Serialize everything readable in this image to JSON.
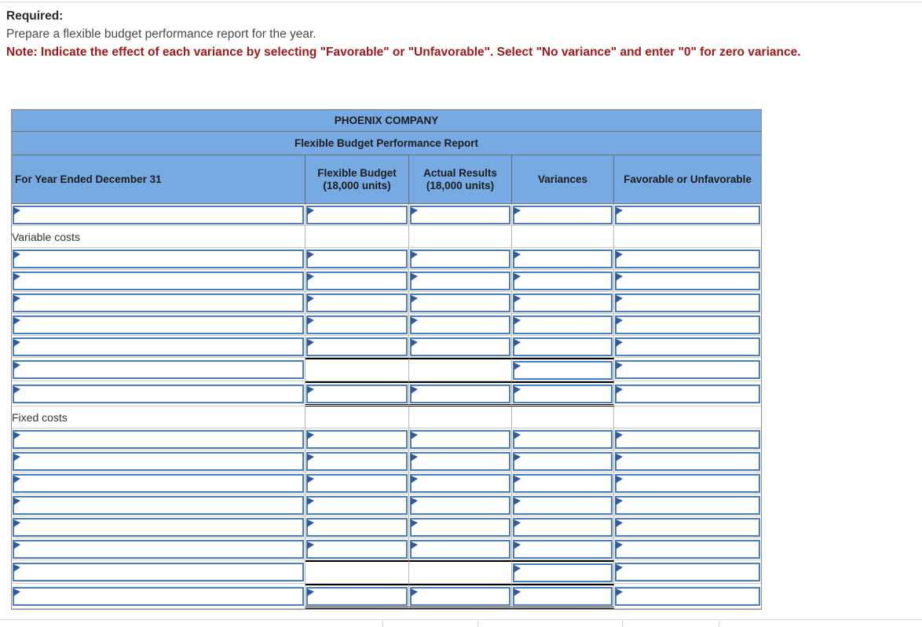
{
  "instructions": {
    "required_label": "Required:",
    "task": "Prepare a flexible budget performance report for the year.",
    "note": "Note: Indicate the effect of each variance by selecting \"Favorable\" or \"Unfavorable\". Select \"No variance\" and enter \"0\" for zero variance."
  },
  "table": {
    "title": "PHOENIX COMPANY",
    "subtitle": "Flexible Budget Performance Report",
    "columns": [
      {
        "label": "For Year Ended December 31"
      },
      {
        "label": "Flexible Budget (18,000 units)"
      },
      {
        "label": "Actual Results (18,000 units)"
      },
      {
        "label": "Variances"
      },
      {
        "label": "Favorable or Unfavorable"
      }
    ],
    "rows": [
      {
        "cells": [
          "i",
          "i",
          "i",
          "i",
          "i"
        ]
      },
      {
        "label": "Variable costs",
        "cells": [
          "l",
          "s",
          "s",
          "s",
          "s"
        ]
      },
      {
        "cells": [
          "i",
          "i",
          "i",
          "i",
          "i"
        ]
      },
      {
        "cells": [
          "i",
          "i",
          "i",
          "i",
          "i"
        ]
      },
      {
        "cells": [
          "i",
          "i",
          "i",
          "i",
          "i"
        ]
      },
      {
        "cells": [
          "i",
          "i",
          "i",
          "i",
          "i"
        ]
      },
      {
        "cells": [
          "i",
          "i",
          "i",
          "i",
          "i"
        ]
      },
      {
        "cells": [
          "i",
          "s bt",
          "s bt",
          "i bt",
          "i"
        ]
      },
      {
        "cells": [
          "i",
          "i bt bdbl",
          "i bt bdbl",
          "i bt bdbl",
          "i"
        ]
      },
      {
        "label": "Fixed costs",
        "cells": [
          "l",
          "s",
          "s",
          "s",
          "s"
        ]
      },
      {
        "cells": [
          "i",
          "i",
          "i",
          "i",
          "i"
        ]
      },
      {
        "cells": [
          "i",
          "i",
          "i",
          "i",
          "i"
        ]
      },
      {
        "cells": [
          "i",
          "i",
          "i",
          "i",
          "i"
        ]
      },
      {
        "cells": [
          "i",
          "i",
          "i",
          "i",
          "i"
        ]
      },
      {
        "cells": [
          "i",
          "i",
          "i",
          "i",
          "i"
        ]
      },
      {
        "cells": [
          "i",
          "i",
          "i",
          "i",
          "i"
        ]
      },
      {
        "cells": [
          "i",
          "s bt",
          "s bt",
          "i bt",
          "i"
        ]
      },
      {
        "cells": [
          "i",
          "i bt bdbl",
          "i bt bdbl",
          "i bt bdbl",
          "i"
        ]
      }
    ],
    "input_values": {
      "default": ""
    }
  },
  "colors": {
    "header_blue": "#77aae2",
    "input_border_blue": "#4a7ebd",
    "flag_blue": "#2d5b9e",
    "note_red": "#a31818",
    "subtotal_rule": "#000000",
    "grid_gray": "#b5b5b5"
  }
}
